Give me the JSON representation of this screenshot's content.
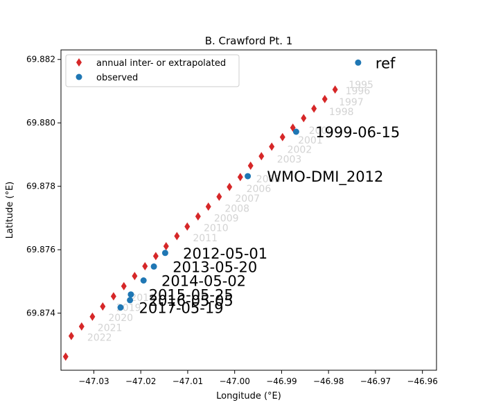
{
  "chart_data": {
    "type": "scatter",
    "title": "B. Crawford Pt. 1",
    "xlabel": "Longitude (°E)",
    "ylabel": "Latitude (°E)",
    "xlim": [
      -47.037,
      -46.957
    ],
    "ylim": [
      69.8722,
      69.8823
    ],
    "x_ticks": [
      -47.03,
      -47.02,
      -47.01,
      -47.0,
      -46.99,
      -46.98,
      -46.97,
      -46.96
    ],
    "x_tick_labels": [
      "−47.03",
      "−47.02",
      "−47.01",
      "−47.00",
      "−46.99",
      "−46.98",
      "−46.97",
      "−46.96"
    ],
    "y_ticks": [
      69.874,
      69.876,
      69.878,
      69.88,
      69.882
    ],
    "y_tick_labels": [
      "69.874",
      "69.876",
      "69.878",
      "69.880",
      "69.882"
    ],
    "grid": false,
    "legend": {
      "placement": "top-left",
      "entries": [
        {
          "label": "annual inter- or extrapolated",
          "marker": "diamond",
          "color": "#d62728"
        },
        {
          "label": "observed",
          "marker": "circle",
          "color": "#1f77b4"
        }
      ]
    },
    "series": [
      {
        "name": "annual inter- or extrapolated",
        "marker": "diamond",
        "color": "#d62728",
        "x": [
          -46.9786,
          -46.9808,
          -46.9831,
          -46.9853,
          -46.9876,
          -46.9898,
          -46.9921,
          -46.9943,
          -46.9966,
          -46.9988,
          -47.0011,
          -47.0033,
          -47.0056,
          -47.0078,
          -47.0101,
          -47.0123,
          -47.0146,
          -47.0168,
          -47.0191,
          -47.0213,
          -47.0236,
          -47.0258,
          -47.0281,
          -47.0303,
          -47.0326,
          -47.0348,
          -47.036
        ],
        "y": [
          69.88105,
          69.88075,
          69.88045,
          69.88015,
          69.87985,
          69.87955,
          69.87925,
          69.87895,
          69.87865,
          69.87829,
          69.87798,
          69.87767,
          69.87736,
          69.87705,
          69.87673,
          69.87643,
          69.87611,
          69.8758,
          69.87548,
          69.87517,
          69.87485,
          69.87453,
          69.87421,
          69.87389,
          69.87358,
          69.87328,
          69.87263
        ]
      },
      {
        "name": "observed",
        "marker": "circle",
        "color": "#1f77b4",
        "x": [
          -46.9737,
          -46.9869,
          -46.9972,
          -47.0148,
          -47.0172,
          -47.0194,
          -47.0221,
          -47.0223,
          -47.0243
        ],
        "y": [
          69.8819,
          69.87972,
          69.87832,
          69.8759,
          69.87547,
          69.87503,
          69.87459,
          69.87441,
          69.87418
        ]
      }
    ],
    "year_labels": [
      {
        "text": "1995",
        "x": -46.9757,
        "y": 69.8811
      },
      {
        "text": "1996",
        "x": -46.9764,
        "y": 69.8809
      },
      {
        "text": "1997",
        "x": -46.9778,
        "y": 69.88055
      },
      {
        "text": "1998",
        "x": -46.9799,
        "y": 69.88025
      },
      {
        "text": "2000",
        "x": -46.9842,
        "y": 69.87965
      },
      {
        "text": "2001",
        "x": -46.9865,
        "y": 69.87935
      },
      {
        "text": "2002",
        "x": -46.9888,
        "y": 69.87905
      },
      {
        "text": "2003",
        "x": -46.991,
        "y": 69.87875
      },
      {
        "text": "2005",
        "x": -46.9954,
        "y": 69.87812
      },
      {
        "text": "2006",
        "x": -46.9975,
        "y": 69.87782
      },
      {
        "text": "2007",
        "x": -46.9999,
        "y": 69.87751
      },
      {
        "text": "2008",
        "x": -47.0021,
        "y": 69.8772
      },
      {
        "text": "2009",
        "x": -47.0044,
        "y": 69.87689
      },
      {
        "text": "2010",
        "x": -47.0066,
        "y": 69.87658
      },
      {
        "text": "2011",
        "x": -47.0089,
        "y": 69.87627
      },
      {
        "text": "2018",
        "x": -47.0222,
        "y": 69.87439
      },
      {
        "text": "2019",
        "x": -47.0252,
        "y": 69.87407
      },
      {
        "text": "2020",
        "x": -47.0269,
        "y": 69.87375
      },
      {
        "text": "2021",
        "x": -47.0292,
        "y": 69.87344
      },
      {
        "text": "2022",
        "x": -47.0314,
        "y": 69.87313
      }
    ],
    "annotations": [
      {
        "text": "ref",
        "x": -46.97,
        "y": 69.8819
      },
      {
        "text": "1999-06-15",
        "x": -46.9828,
        "y": 69.87972
      },
      {
        "text": "WMO-DMI_2012",
        "x": -46.9931,
        "y": 69.87832
      },
      {
        "text": "2012-05-01",
        "x": -47.011,
        "y": 69.8759
      },
      {
        "text": "2013-05-20",
        "x": -47.0132,
        "y": 69.87547
      },
      {
        "text": "2014-05-02",
        "x": -47.0156,
        "y": 69.87503
      },
      {
        "text": "2015-05-25",
        "x": -47.0183,
        "y": 69.87459
      },
      {
        "text": "2016-05-05",
        "x": -47.0183,
        "y": 69.87441
      },
      {
        "text": "2017-05-19",
        "x": -47.0204,
        "y": 69.87418
      }
    ]
  }
}
